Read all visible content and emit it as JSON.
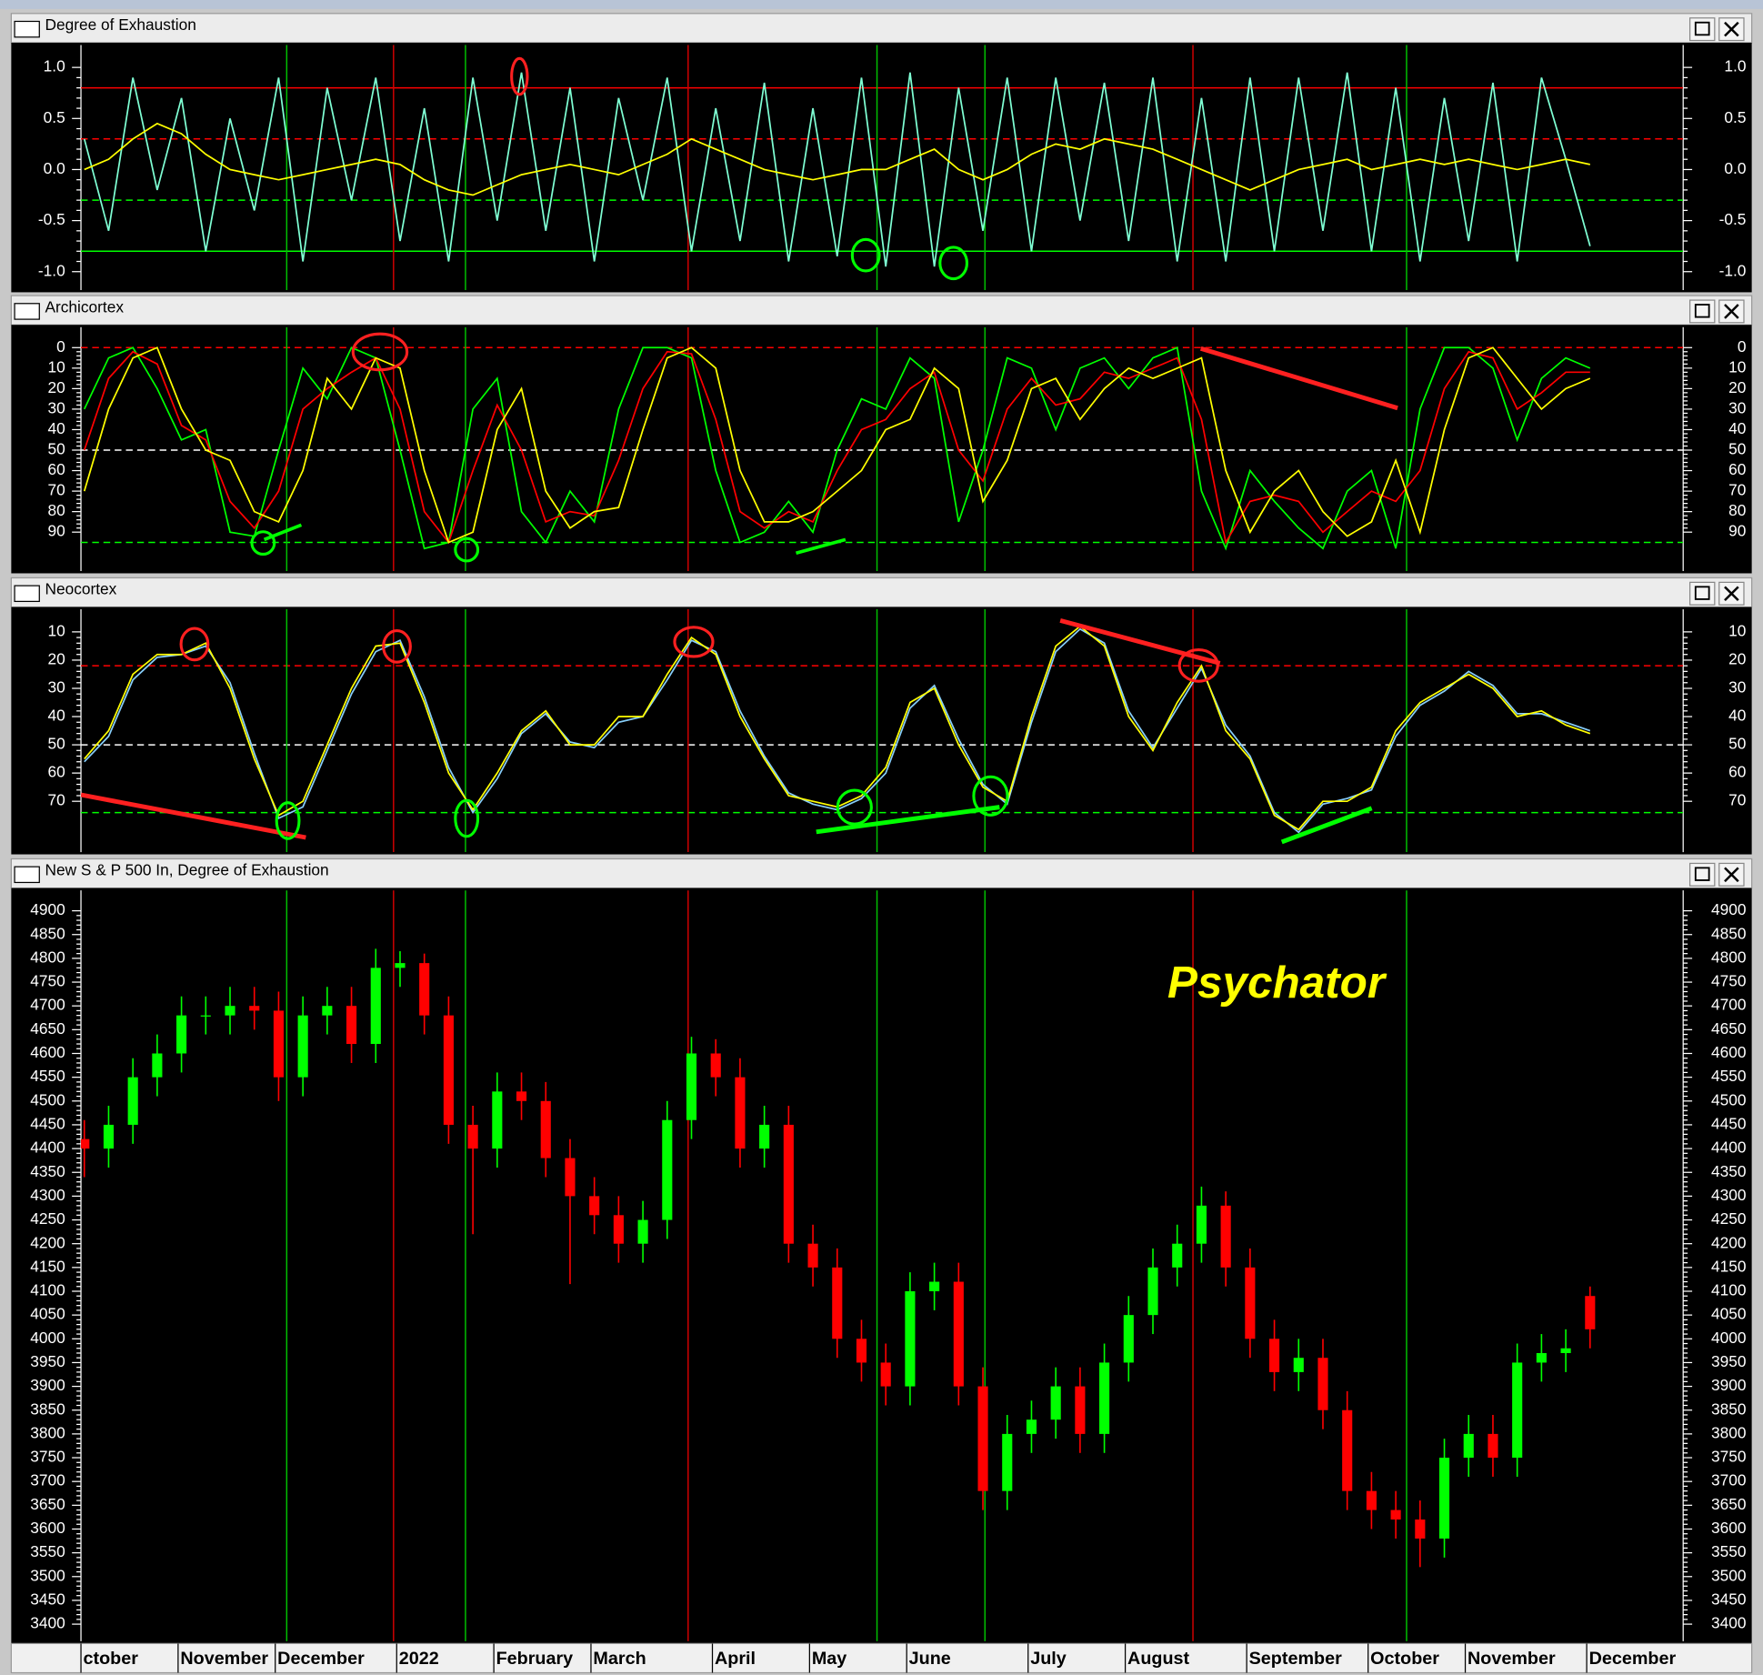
{
  "chart_data": [
    {
      "type": "line",
      "title": "Degree of Exhaustion",
      "ylim": [
        -1.18,
        1.22
      ],
      "yticks": [
        {
          "value": 1,
          "label": "1.0"
        },
        {
          "value": 0.5,
          "label": "0.5"
        },
        {
          "value": 0,
          "label": "0.0"
        },
        {
          "value": -0.5,
          "label": "-0.5"
        },
        {
          "value": -1,
          "label": "-1.0"
        }
      ],
      "reference_lines": [
        {
          "value": 0.8,
          "color": "#ff0000",
          "style": "solid"
        },
        {
          "value": 0.3,
          "color": "#ff0000",
          "style": "dashed"
        },
        {
          "value": -0.3,
          "color": "#00ff00",
          "style": "dashed"
        },
        {
          "value": -0.8,
          "color": "#00ff00",
          "style": "solid"
        }
      ],
      "series": [
        {
          "color": "#7fffd4",
          "values": [
            0.3,
            -0.6,
            0.9,
            -0.2,
            0.7,
            -0.8,
            0.5,
            -0.4,
            0.9,
            -0.9,
            0.8,
            -0.3,
            0.9,
            -0.7,
            0.6,
            -0.9,
            0.9,
            -0.5,
            0.95,
            -0.6,
            0.8,
            -0.9,
            0.7,
            -0.3,
            0.9,
            -0.8,
            0.6,
            -0.7,
            0.85,
            -0.9,
            0.6,
            -0.85,
            0.9,
            -0.95,
            0.95,
            -0.95,
            0.8,
            -0.6,
            0.9,
            -0.8,
            0.9,
            -0.5,
            0.85,
            -0.7,
            0.9,
            -0.9,
            0.7,
            -0.9,
            0.9,
            -0.8,
            0.9,
            -0.6,
            0.95,
            -0.8,
            0.8,
            -0.9,
            0.7,
            -0.7,
            0.85,
            -0.9,
            0.9,
            0.1,
            -0.75
          ]
        },
        {
          "color": "#ffff00",
          "values": [
            0.0,
            0.1,
            0.3,
            0.45,
            0.35,
            0.15,
            0.0,
            -0.05,
            -0.1,
            -0.05,
            0.0,
            0.05,
            0.1,
            0.05,
            -0.1,
            -0.2,
            -0.25,
            -0.15,
            -0.05,
            0.0,
            0.05,
            0.0,
            -0.05,
            0.05,
            0.15,
            0.3,
            0.2,
            0.1,
            0.0,
            -0.05,
            -0.1,
            -0.05,
            0.0,
            0.0,
            0.1,
            0.2,
            0.0,
            -0.1,
            0.0,
            0.15,
            0.25,
            0.2,
            0.3,
            0.25,
            0.2,
            0.1,
            0.0,
            -0.1,
            -0.2,
            -0.1,
            0.0,
            0.05,
            0.1,
            0.0,
            0.05,
            0.1,
            0.05,
            0.1,
            0.05,
            0.0,
            0.05,
            0.1,
            0.05
          ]
        }
      ]
    },
    {
      "type": "line",
      "title": "Archicortex",
      "ylim": [
        -10,
        109
      ],
      "invert_y": true,
      "yticks": [
        0,
        10,
        20,
        30,
        40,
        50,
        60,
        70,
        80,
        90
      ],
      "reference_lines": [
        {
          "value": 0,
          "color": "#ff0000",
          "style": "dashed"
        },
        {
          "value": 50,
          "color": "#ffffff",
          "style": "dashed"
        },
        {
          "value": 95,
          "color": "#00ff00",
          "style": "dashed"
        }
      ],
      "series": [
        {
          "color": "#00ff00",
          "values": [
            30,
            5,
            0,
            20,
            45,
            40,
            90,
            92,
            50,
            10,
            25,
            0,
            5,
            50,
            98,
            95,
            30,
            15,
            80,
            95,
            70,
            85,
            30,
            0,
            0,
            5,
            60,
            95,
            90,
            75,
            90,
            50,
            25,
            30,
            5,
            15,
            85,
            50,
            5,
            10,
            40,
            10,
            5,
            20,
            5,
            0,
            70,
            98,
            60,
            75,
            88,
            98,
            70,
            60,
            98,
            30,
            0,
            0,
            10,
            45,
            15,
            5,
            10
          ]
        },
        {
          "color": "#ff0000",
          "values": [
            50,
            15,
            2,
            8,
            38,
            45,
            75,
            88,
            70,
            30,
            20,
            12,
            5,
            30,
            80,
            95,
            60,
            28,
            50,
            85,
            80,
            82,
            55,
            20,
            2,
            3,
            35,
            80,
            88,
            80,
            85,
            60,
            40,
            35,
            20,
            12,
            50,
            65,
            30,
            15,
            28,
            25,
            12,
            15,
            10,
            5,
            35,
            95,
            75,
            72,
            75,
            90,
            80,
            70,
            75,
            60,
            20,
            2,
            5,
            30,
            22,
            12,
            12
          ]
        },
        {
          "color": "#ffff00",
          "values": [
            70,
            30,
            5,
            0,
            30,
            50,
            55,
            80,
            85,
            60,
            15,
            30,
            5,
            10,
            60,
            95,
            90,
            40,
            20,
            70,
            88,
            80,
            78,
            40,
            5,
            0,
            10,
            60,
            85,
            85,
            80,
            70,
            60,
            40,
            35,
            10,
            20,
            75,
            55,
            20,
            15,
            35,
            20,
            10,
            15,
            10,
            5,
            60,
            90,
            70,
            60,
            80,
            92,
            85,
            55,
            90,
            40,
            5,
            0,
            15,
            30,
            20,
            15
          ]
        }
      ]
    },
    {
      "type": "line",
      "title": "Neocortex",
      "ylim": [
        2,
        88
      ],
      "invert_y": true,
      "yticks": [
        10,
        20,
        30,
        40,
        50,
        60,
        70
      ],
      "reference_lines": [
        {
          "value": 22,
          "color": "#ff0000",
          "style": "dashed"
        },
        {
          "value": 50,
          "color": "#ffffff",
          "style": "dashed"
        },
        {
          "value": 74,
          "color": "#00ff00",
          "style": "dashed"
        }
      ],
      "series": [
        {
          "color": "#87cefa",
          "values": [
            56,
            47,
            27,
            19,
            18,
            15,
            28,
            53,
            76,
            72,
            52,
            32,
            17,
            13,
            33,
            58,
            74,
            62,
            46,
            39,
            49,
            51,
            42,
            40,
            27,
            13,
            17,
            38,
            54,
            67,
            71,
            73,
            69,
            60,
            37,
            29,
            48,
            64,
            71,
            42,
            17,
            9,
            14,
            38,
            51,
            37,
            23,
            43,
            54,
            74,
            81,
            71,
            69,
            66,
            47,
            36,
            31,
            24,
            29,
            39,
            39,
            42,
            45
          ]
        },
        {
          "color": "#ffff00",
          "values": [
            55,
            45,
            25,
            18,
            18,
            14,
            30,
            55,
            75,
            70,
            50,
            30,
            15,
            14,
            35,
            60,
            73,
            60,
            45,
            38,
            50,
            50,
            40,
            40,
            25,
            12,
            18,
            40,
            55,
            68,
            70,
            72,
            68,
            58,
            35,
            30,
            50,
            65,
            70,
            40,
            15,
            8,
            15,
            40,
            52,
            35,
            22,
            45,
            55,
            75,
            80,
            70,
            70,
            65,
            45,
            35,
            30,
            25,
            30,
            40,
            38,
            43,
            46
          ]
        }
      ]
    },
    {
      "type": "candlestick",
      "title": "New S & P 500 In, Degree of Exhaustion",
      "annotation": "Psychator",
      "ylim": [
        3364,
        4943
      ],
      "yticks": [
        3400,
        3450,
        3500,
        3550,
        3600,
        3650,
        3700,
        3750,
        3800,
        3850,
        3900,
        3950,
        4000,
        4050,
        4100,
        4150,
        4200,
        4250,
        4300,
        4350,
        4400,
        4450,
        4500,
        4550,
        4600,
        4650,
        4700,
        4750,
        4800,
        4850,
        4900
      ],
      "up_color": "#00ff00",
      "down_color": "#ff0000",
      "categories": [
        "ctober",
        null,
        null,
        null,
        "November",
        null,
        null,
        null,
        "December",
        null,
        null,
        null,
        null,
        "2022",
        null,
        null,
        null,
        "February",
        null,
        null,
        null,
        "March",
        null,
        null,
        null,
        null,
        "April",
        null,
        null,
        null,
        "May",
        null,
        null,
        null,
        "June",
        null,
        null,
        null,
        null,
        "July",
        null,
        null,
        null,
        "August",
        null,
        null,
        null,
        null,
        "September",
        null,
        null,
        null,
        null,
        "October",
        null,
        null,
        null,
        "November",
        null,
        null,
        null,
        null,
        "December"
      ],
      "open": [
        4420,
        4400,
        4450,
        4550,
        4600,
        4680,
        4680,
        4700,
        4690,
        4550,
        4680,
        4700,
        4620,
        4780,
        4790,
        4680,
        4450,
        4400,
        4520,
        4500,
        4380,
        4300,
        4260,
        4200,
        4250,
        4460,
        4600,
        4550,
        4400,
        4450,
        4200,
        4150,
        4000,
        3950,
        3900,
        4100,
        4120,
        3900,
        3680,
        3800,
        3830,
        3900,
        3800,
        3950,
        4050,
        4150,
        4200,
        4280,
        4150,
        4000,
        3930,
        3960,
        3850,
        3680,
        3640,
        3620,
        3580,
        3750,
        3800,
        3750,
        3950,
        3970,
        4090
      ],
      "high": [
        4460,
        4490,
        4590,
        4640,
        4720,
        4720,
        4740,
        4740,
        4730,
        4720,
        4740,
        4740,
        4820,
        4815,
        4810,
        4720,
        4490,
        4560,
        4560,
        4540,
        4420,
        4340,
        4300,
        4290,
        4500,
        4635,
        4630,
        4590,
        4490,
        4490,
        4240,
        4190,
        4040,
        3990,
        4140,
        4160,
        4160,
        3940,
        3840,
        3870,
        3940,
        3940,
        3990,
        4090,
        4190,
        4240,
        4320,
        4310,
        4190,
        4040,
        4000,
        4000,
        3890,
        3720,
        3680,
        3660,
        3790,
        3840,
        3840,
        3990,
        4010,
        4020,
        4110
      ],
      "low": [
        4340,
        4360,
        4410,
        4510,
        4560,
        4640,
        4640,
        4650,
        4500,
        4510,
        4640,
        4580,
        4580,
        4740,
        4640,
        4410,
        4220,
        4360,
        4460,
        4340,
        4115,
        4220,
        4160,
        4160,
        4210,
        4420,
        4510,
        4360,
        4360,
        4160,
        4110,
        3960,
        3910,
        3860,
        3860,
        4060,
        3860,
        3640,
        3640,
        3760,
        3790,
        3760,
        3760,
        3910,
        4010,
        4110,
        4160,
        4110,
        3960,
        3890,
        3890,
        3810,
        3640,
        3600,
        3580,
        3520,
        3540,
        3710,
        3710,
        3710,
        3910,
        3930,
        3980
      ],
      "close": [
        4400,
        4450,
        4550,
        4600,
        4680,
        4680,
        4700,
        4690,
        4550,
        4680,
        4700,
        4620,
        4780,
        4790,
        4680,
        4450,
        4400,
        4520,
        4500,
        4380,
        4300,
        4260,
        4200,
        4250,
        4460,
        4600,
        4550,
        4400,
        4450,
        4200,
        4150,
        4000,
        3950,
        3900,
        4100,
        4120,
        3900,
        3680,
        3800,
        3830,
        3900,
        3800,
        3950,
        4050,
        4150,
        4200,
        4280,
        4150,
        4000,
        3930,
        3960,
        3850,
        3680,
        3640,
        3620,
        3580,
        3750,
        3800,
        3750,
        3950,
        3970,
        3980,
        4020
      ]
    }
  ]
}
